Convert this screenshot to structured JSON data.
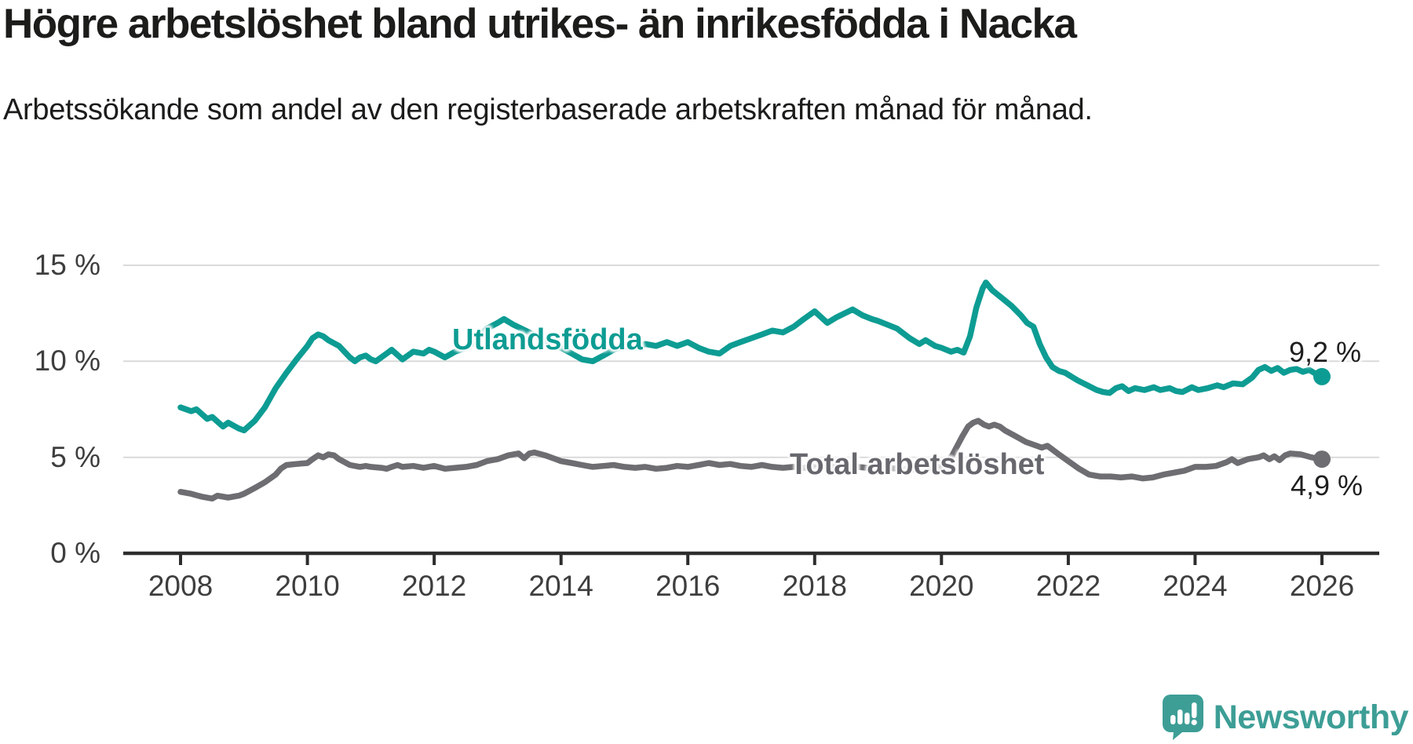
{
  "header": {
    "title": "Högre arbetslöshet bland utrikes- än inrikesfödda i Nacka",
    "subtitle": "Arbetssökande som andel av den registerbaserade arbetskraften månad för månad."
  },
  "footer": {
    "brand": "Newsworthy"
  },
  "colors": {
    "series_foreign_born": "#0d9c93",
    "series_total": "#6d6d72",
    "grid": "#dadada",
    "axis": "#2d2d2d",
    "tick_text": "#3e3e3e",
    "title_text": "#1c1c1a",
    "brand_teal": "#3d9e96"
  },
  "chart_data": {
    "type": "line",
    "title": "Högre arbetslöshet bland utrikes- än inrikesfödda i Nacka",
    "subtitle": "Arbetssökande som andel av den registerbaserade arbetskraften månad för månad.",
    "grid": "horizontal-only",
    "legend_position": "inline-labels",
    "x_axis": {
      "min": 2008,
      "max": 2026,
      "ticks": [
        2008,
        2010,
        2012,
        2014,
        2016,
        2018,
        2020,
        2022,
        2024,
        2026
      ]
    },
    "y_axis": {
      "min": 0,
      "max": 15,
      "ticks": [
        0,
        5,
        10,
        15
      ],
      "tick_suffix": " %"
    },
    "series": [
      {
        "name": "Utlandsfödda",
        "color": "#0d9c93",
        "end_label": "9,2 %",
        "end_value": 9.2,
        "points": [
          [
            2008.0,
            7.6
          ],
          [
            2008.17,
            7.4
          ],
          [
            2008.25,
            7.5
          ],
          [
            2008.42,
            7.0
          ],
          [
            2008.5,
            7.1
          ],
          [
            2008.67,
            6.6
          ],
          [
            2008.75,
            6.8
          ],
          [
            2008.92,
            6.5
          ],
          [
            2009.0,
            6.4
          ],
          [
            2009.17,
            6.9
          ],
          [
            2009.33,
            7.6
          ],
          [
            2009.5,
            8.6
          ],
          [
            2009.67,
            9.4
          ],
          [
            2009.83,
            10.1
          ],
          [
            2010.0,
            10.8
          ],
          [
            2010.08,
            11.2
          ],
          [
            2010.17,
            11.4
          ],
          [
            2010.25,
            11.3
          ],
          [
            2010.33,
            11.1
          ],
          [
            2010.5,
            10.8
          ],
          [
            2010.67,
            10.2
          ],
          [
            2010.75,
            10.0
          ],
          [
            2010.83,
            10.2
          ],
          [
            2010.92,
            10.3
          ],
          [
            2011.0,
            10.1
          ],
          [
            2011.08,
            10.0
          ],
          [
            2011.25,
            10.4
          ],
          [
            2011.33,
            10.6
          ],
          [
            2011.5,
            10.1
          ],
          [
            2011.67,
            10.5
          ],
          [
            2011.83,
            10.4
          ],
          [
            2011.92,
            10.6
          ],
          [
            2012.0,
            10.5
          ],
          [
            2012.17,
            10.2
          ],
          [
            2012.33,
            10.5
          ],
          [
            2012.5,
            10.7
          ],
          [
            2012.67,
            11.1
          ],
          [
            2012.83,
            11.7
          ],
          [
            2013.0,
            12.0
          ],
          [
            2013.1,
            12.2
          ],
          [
            2013.25,
            11.9
          ],
          [
            2013.5,
            11.5
          ],
          [
            2013.67,
            11.2
          ],
          [
            2013.83,
            10.9
          ],
          [
            2014.0,
            10.7
          ],
          [
            2014.17,
            10.4
          ],
          [
            2014.33,
            10.1
          ],
          [
            2014.5,
            10.0
          ],
          [
            2014.67,
            10.3
          ],
          [
            2014.83,
            10.6
          ],
          [
            2015.0,
            10.8
          ],
          [
            2015.17,
            10.7
          ],
          [
            2015.33,
            10.9
          ],
          [
            2015.5,
            10.8
          ],
          [
            2015.67,
            11.0
          ],
          [
            2015.83,
            10.8
          ],
          [
            2016.0,
            11.0
          ],
          [
            2016.17,
            10.7
          ],
          [
            2016.33,
            10.5
          ],
          [
            2016.5,
            10.4
          ],
          [
            2016.67,
            10.8
          ],
          [
            2016.83,
            11.0
          ],
          [
            2017.0,
            11.2
          ],
          [
            2017.17,
            11.4
          ],
          [
            2017.33,
            11.6
          ],
          [
            2017.5,
            11.5
          ],
          [
            2017.67,
            11.8
          ],
          [
            2017.83,
            12.2
          ],
          [
            2018.0,
            12.6
          ],
          [
            2018.2,
            12.0
          ],
          [
            2018.35,
            12.3
          ],
          [
            2018.6,
            12.7
          ],
          [
            2018.75,
            12.4
          ],
          [
            2018.9,
            12.2
          ],
          [
            2019.0,
            12.1
          ],
          [
            2019.15,
            11.9
          ],
          [
            2019.3,
            11.7
          ],
          [
            2019.5,
            11.2
          ],
          [
            2019.65,
            10.9
          ],
          [
            2019.75,
            11.1
          ],
          [
            2019.9,
            10.8
          ],
          [
            2020.0,
            10.7
          ],
          [
            2020.15,
            10.5
          ],
          [
            2020.25,
            10.6
          ],
          [
            2020.35,
            10.45
          ],
          [
            2020.45,
            11.3
          ],
          [
            2020.55,
            12.8
          ],
          [
            2020.65,
            13.8
          ],
          [
            2020.7,
            14.1
          ],
          [
            2020.8,
            13.7
          ],
          [
            2020.95,
            13.3
          ],
          [
            2021.1,
            12.9
          ],
          [
            2021.25,
            12.4
          ],
          [
            2021.35,
            12.0
          ],
          [
            2021.45,
            11.8
          ],
          [
            2021.55,
            10.9
          ],
          [
            2021.65,
            10.2
          ],
          [
            2021.75,
            9.7
          ],
          [
            2021.85,
            9.5
          ],
          [
            2021.95,
            9.4
          ],
          [
            2022.05,
            9.2
          ],
          [
            2022.15,
            9.0
          ],
          [
            2022.3,
            8.75
          ],
          [
            2022.45,
            8.5
          ],
          [
            2022.55,
            8.4
          ],
          [
            2022.65,
            8.35
          ],
          [
            2022.75,
            8.6
          ],
          [
            2022.85,
            8.7
          ],
          [
            2022.95,
            8.45
          ],
          [
            2023.05,
            8.6
          ],
          [
            2023.2,
            8.5
          ],
          [
            2023.35,
            8.65
          ],
          [
            2023.45,
            8.5
          ],
          [
            2023.6,
            8.6
          ],
          [
            2023.7,
            8.45
          ],
          [
            2023.8,
            8.4
          ],
          [
            2023.95,
            8.65
          ],
          [
            2024.05,
            8.5
          ],
          [
            2024.2,
            8.6
          ],
          [
            2024.35,
            8.75
          ],
          [
            2024.45,
            8.65
          ],
          [
            2024.6,
            8.85
          ],
          [
            2024.75,
            8.8
          ],
          [
            2024.9,
            9.15
          ],
          [
            2025.0,
            9.55
          ],
          [
            2025.1,
            9.7
          ],
          [
            2025.2,
            9.5
          ],
          [
            2025.3,
            9.65
          ],
          [
            2025.4,
            9.4
          ],
          [
            2025.5,
            9.55
          ],
          [
            2025.6,
            9.6
          ],
          [
            2025.7,
            9.45
          ],
          [
            2025.8,
            9.55
          ],
          [
            2025.9,
            9.35
          ],
          [
            2026.0,
            9.2
          ]
        ]
      },
      {
        "name": "Total arbetslöshet",
        "color": "#6d6d72",
        "end_label": "4,9 %",
        "end_value": 4.9,
        "points": [
          [
            2008.0,
            3.2
          ],
          [
            2008.17,
            3.1
          ],
          [
            2008.33,
            2.95
          ],
          [
            2008.5,
            2.85
          ],
          [
            2008.58,
            3.0
          ],
          [
            2008.75,
            2.9
          ],
          [
            2008.92,
            3.0
          ],
          [
            2009.0,
            3.1
          ],
          [
            2009.17,
            3.4
          ],
          [
            2009.33,
            3.7
          ],
          [
            2009.5,
            4.1
          ],
          [
            2009.58,
            4.4
          ],
          [
            2009.67,
            4.6
          ],
          [
            2009.83,
            4.65
          ],
          [
            2010.0,
            4.7
          ],
          [
            2010.08,
            4.9
          ],
          [
            2010.17,
            5.1
          ],
          [
            2010.25,
            5.0
          ],
          [
            2010.33,
            5.15
          ],
          [
            2010.42,
            5.1
          ],
          [
            2010.5,
            4.9
          ],
          [
            2010.67,
            4.6
          ],
          [
            2010.83,
            4.5
          ],
          [
            2010.92,
            4.55
          ],
          [
            2011.0,
            4.5
          ],
          [
            2011.17,
            4.45
          ],
          [
            2011.25,
            4.4
          ],
          [
            2011.33,
            4.5
          ],
          [
            2011.42,
            4.6
          ],
          [
            2011.5,
            4.5
          ],
          [
            2011.67,
            4.55
          ],
          [
            2011.83,
            4.45
          ],
          [
            2012.0,
            4.55
          ],
          [
            2012.17,
            4.4
          ],
          [
            2012.33,
            4.45
          ],
          [
            2012.5,
            4.5
          ],
          [
            2012.67,
            4.6
          ],
          [
            2012.83,
            4.8
          ],
          [
            2013.0,
            4.9
          ],
          [
            2013.17,
            5.1
          ],
          [
            2013.33,
            5.2
          ],
          [
            2013.42,
            4.95
          ],
          [
            2013.5,
            5.2
          ],
          [
            2013.58,
            5.25
          ],
          [
            2013.75,
            5.1
          ],
          [
            2013.92,
            4.9
          ],
          [
            2014.0,
            4.8
          ],
          [
            2014.17,
            4.7
          ],
          [
            2014.33,
            4.6
          ],
          [
            2014.5,
            4.5
          ],
          [
            2014.67,
            4.55
          ],
          [
            2014.83,
            4.6
          ],
          [
            2015.0,
            4.5
          ],
          [
            2015.17,
            4.45
          ],
          [
            2015.33,
            4.5
          ],
          [
            2015.5,
            4.4
          ],
          [
            2015.67,
            4.45
          ],
          [
            2015.83,
            4.55
          ],
          [
            2016.0,
            4.5
          ],
          [
            2016.17,
            4.6
          ],
          [
            2016.33,
            4.7
          ],
          [
            2016.5,
            4.6
          ],
          [
            2016.67,
            4.65
          ],
          [
            2016.83,
            4.55
          ],
          [
            2017.0,
            4.5
          ],
          [
            2017.17,
            4.6
          ],
          [
            2017.33,
            4.5
          ],
          [
            2017.5,
            4.45
          ],
          [
            2017.67,
            4.5
          ],
          [
            2017.83,
            4.45
          ],
          [
            2018.0,
            4.5
          ],
          [
            2018.17,
            4.55
          ],
          [
            2018.33,
            4.5
          ],
          [
            2018.5,
            4.45
          ],
          [
            2018.67,
            4.5
          ],
          [
            2018.83,
            4.45
          ],
          [
            2019.0,
            4.4
          ],
          [
            2019.17,
            4.45
          ],
          [
            2019.33,
            4.4
          ],
          [
            2019.5,
            4.35
          ],
          [
            2019.67,
            4.4
          ],
          [
            2019.83,
            4.45
          ],
          [
            2020.0,
            4.5
          ],
          [
            2020.08,
            4.7
          ],
          [
            2020.17,
            5.1
          ],
          [
            2020.25,
            5.6
          ],
          [
            2020.33,
            6.1
          ],
          [
            2020.42,
            6.6
          ],
          [
            2020.5,
            6.8
          ],
          [
            2020.58,
            6.9
          ],
          [
            2020.67,
            6.7
          ],
          [
            2020.75,
            6.6
          ],
          [
            2020.83,
            6.7
          ],
          [
            2020.92,
            6.6
          ],
          [
            2021.0,
            6.4
          ],
          [
            2021.17,
            6.1
          ],
          [
            2021.33,
            5.8
          ],
          [
            2021.5,
            5.6
          ],
          [
            2021.58,
            5.5
          ],
          [
            2021.67,
            5.6
          ],
          [
            2021.83,
            5.2
          ],
          [
            2022.0,
            4.8
          ],
          [
            2022.17,
            4.4
          ],
          [
            2022.33,
            4.1
          ],
          [
            2022.5,
            4.0
          ],
          [
            2022.67,
            4.0
          ],
          [
            2022.83,
            3.95
          ],
          [
            2023.0,
            4.0
          ],
          [
            2023.17,
            3.9
          ],
          [
            2023.33,
            3.95
          ],
          [
            2023.5,
            4.1
          ],
          [
            2023.67,
            4.2
          ],
          [
            2023.83,
            4.3
          ],
          [
            2024.0,
            4.5
          ],
          [
            2024.17,
            4.5
          ],
          [
            2024.33,
            4.55
          ],
          [
            2024.5,
            4.75
          ],
          [
            2024.58,
            4.9
          ],
          [
            2024.67,
            4.7
          ],
          [
            2024.83,
            4.9
          ],
          [
            2025.0,
            5.0
          ],
          [
            2025.08,
            5.1
          ],
          [
            2025.17,
            4.9
          ],
          [
            2025.25,
            5.05
          ],
          [
            2025.33,
            4.85
          ],
          [
            2025.42,
            5.1
          ],
          [
            2025.5,
            5.2
          ],
          [
            2025.67,
            5.15
          ],
          [
            2025.83,
            5.0
          ],
          [
            2025.92,
            4.95
          ],
          [
            2026.0,
            4.9
          ]
        ]
      }
    ]
  }
}
